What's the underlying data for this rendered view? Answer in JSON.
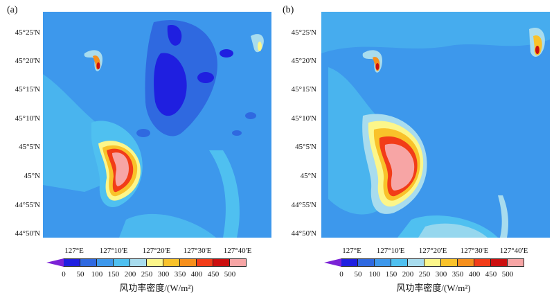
{
  "panels": [
    {
      "label": "(a)"
    },
    {
      "label": "(b)"
    }
  ],
  "lat_labels": [
    "45°25'N",
    "45°20'N",
    "45°15'N",
    "45°10'N",
    "45°5'N",
    "45°N",
    "44°55'N",
    "44°50'N"
  ],
  "lon_labels": [
    "127°E",
    "127°10'E",
    "127°20'E",
    "127°30'E",
    "127°40'E"
  ],
  "colorbar": {
    "ticks": [
      "0",
      "50",
      "100",
      "150",
      "200",
      "250",
      "300",
      "350",
      "400",
      "450",
      "500"
    ],
    "colors": [
      "#7b22d6",
      "#1f1fe0",
      "#2f69e0",
      "#3d98ec",
      "#4fc0f0",
      "#a8dcee",
      "#fcf68a",
      "#f9c22a",
      "#f68f1c",
      "#f23c18",
      "#cc0f0f",
      "#f7a5a5"
    ],
    "title": "风功率密度/(W/m²)"
  }
}
